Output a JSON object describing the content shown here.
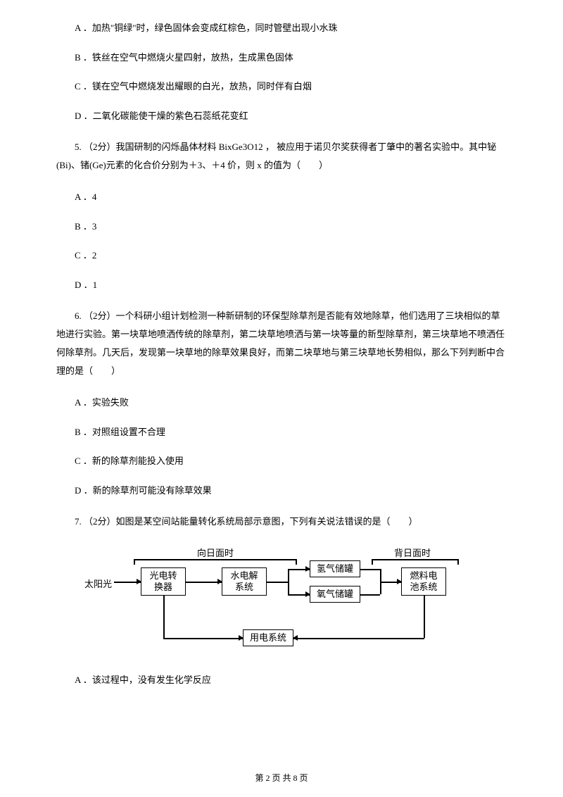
{
  "q_prev_options": {
    "A": "A ．加热\"铜绿\"时，绿色固体会变成红棕色，同时管壁出现小水珠",
    "B": "B ．铁丝在空气中燃烧火星四射，放热，生成黑色固体",
    "C": "C ．镁在空气中燃烧发出耀眼的白光，放热，同时伴有白烟",
    "D": "D ．二氧化碳能使干燥的紫色石蕊纸花变红"
  },
  "q5": {
    "stem": "5. （2分）我国研制的闪烁晶体材料 BixGe3O12 ， 被应用于诺贝尔奖获得者丁肇中的著名实验中。其中铋(Bi)、锗(Ge)元素的化合价分别为＋3、＋4 价，则 x 的值为（　　）",
    "A": "A ．4",
    "B": "B ．3",
    "C": "C ．2",
    "D": "D ．1"
  },
  "q6": {
    "stem": "6. （2分）一个科研小组计划检测一种新研制的环保型除草剂是否能有效地除草，他们选用了三块相似的草地进行实验。第一块草地喷洒传统的除草剂，第二块草地喷洒与第一块等量的新型除草剂，第三块草地不喷洒任何除草剂。几天后，发现第一块草地的除草效果良好，而第二块草地与第三块草地长势相似，那么下列判断中合理的是（　　）",
    "A": "A ．实验失败",
    "B": "B ．对照组设置不合理",
    "C": "C ．新的除草剂能投入使用",
    "D": "D ．新的除草剂可能没有除草效果"
  },
  "q7": {
    "stem": "7. （2分）如图是某空间站能量转化系统局部示意图，下列有关说法错误的是（　　）",
    "A": "A ．该过程中，没有发生化学反应"
  },
  "diagram": {
    "sun": "太阳光",
    "label_left": "向日面时",
    "label_right": "背日面时",
    "n1": "光电转\n换器",
    "n2": "水电解\n系统",
    "n3": "氢气储罐",
    "n4": "氧气储罐",
    "n5": "燃料电\n池系统",
    "n6": "用电系统"
  },
  "footer": "第 2 页 共 8 页"
}
